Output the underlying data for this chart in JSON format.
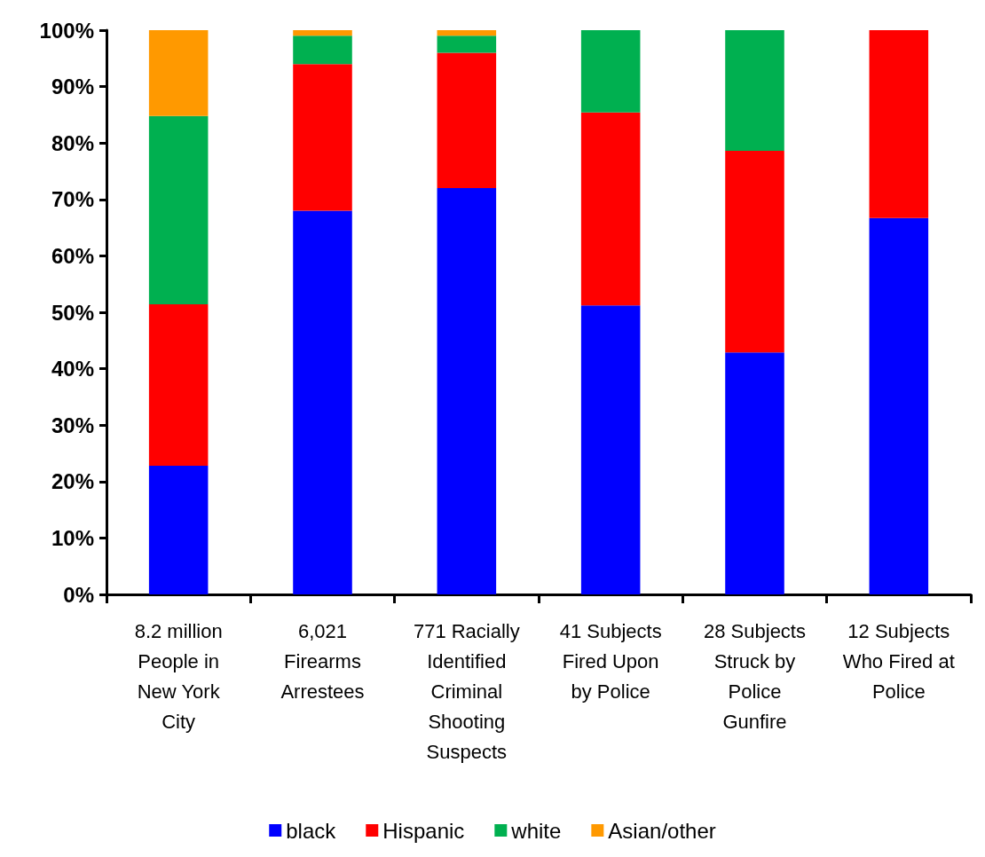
{
  "chart_data": {
    "type": "bar",
    "stacked": true,
    "categories": [
      "8.2 million\nPeople in\nNew York\nCity",
      "6,021\nFirearms\nArrestees",
      "771 Racially\nIdentified\nCriminal\nShooting\nSuspects",
      "41 Subjects\nFired Upon\nby Police",
      "28 Subjects\nStruck by\nPolice\nGunfire",
      "12 Subjects\nWho Fired at\nPolice"
    ],
    "series": [
      {
        "name": "black",
        "color": "#0000ff",
        "values": [
          22.8,
          68,
          72,
          51.2,
          42.9,
          66.7
        ]
      },
      {
        "name": "Hispanic",
        "color": "#ff0000",
        "values": [
          28.6,
          26,
          24,
          34.2,
          35.7,
          33.3
        ]
      },
      {
        "name": "white",
        "color": "#00b050",
        "values": [
          33.4,
          5,
          3,
          14.6,
          21.4,
          0
        ]
      },
      {
        "name": "Asian/other",
        "color": "#ff9900",
        "values": [
          15.2,
          1,
          1,
          0,
          0,
          0
        ]
      }
    ],
    "ylim": [
      0,
      100
    ],
    "yticks": [
      {
        "value": 0,
        "label": "0%"
      },
      {
        "value": 10,
        "label": "10%"
      },
      {
        "value": 20,
        "label": "20%"
      },
      {
        "value": 30,
        "label": "30%"
      },
      {
        "value": 40,
        "label": "40%"
      },
      {
        "value": 50,
        "label": "50%"
      },
      {
        "value": 60,
        "label": "60%"
      },
      {
        "value": 70,
        "label": "70%"
      },
      {
        "value": 80,
        "label": "80%"
      },
      {
        "value": 90,
        "label": "90%"
      },
      {
        "value": 100,
        "label": "100%"
      }
    ],
    "grid": false,
    "legend": "bottom"
  }
}
